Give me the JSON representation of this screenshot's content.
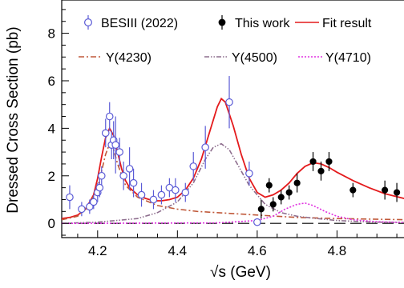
{
  "chart_data": {
    "type": "scatter",
    "title": "",
    "xlabel": "√s (GeV)",
    "ylabel": "Dressed Cross Section (pb)",
    "xlim": [
      4.11,
      4.98
    ],
    "ylim": [
      -0.6,
      9.4
    ],
    "xticks": [
      4.2,
      4.4,
      4.6,
      4.8
    ],
    "xtick_labels": [
      "4.2",
      "4.4",
      "4.6",
      "4.8"
    ],
    "yticks": [
      0,
      2,
      4,
      6,
      8
    ],
    "ytick_labels": [
      "0",
      "2",
      "4",
      "6",
      "8"
    ],
    "grid": false,
    "legend": [
      {
        "label": "BESIII (2022)",
        "style": "open-circle",
        "color": "#5b5bd6"
      },
      {
        "label": "This work",
        "style": "filled-circle",
        "color": "#000000"
      },
      {
        "label": "Fit result",
        "style": "line",
        "color": "#e41a1c"
      },
      {
        "label": "Y(4230)",
        "style": "dash-dot",
        "color": "#c0593a"
      },
      {
        "label": "Y(4500)",
        "style": "dash-dot-dot",
        "color": "#8e6e8e"
      },
      {
        "label": "Y(4710)",
        "style": "dotted",
        "color": "#e030e0"
      }
    ],
    "series": [
      {
        "name": "BESIII (2022)",
        "marker": "open-circle",
        "color": "#5b5bd6",
        "points": [
          {
            "x": 4.13,
            "y": 1.1,
            "err": 0.5
          },
          {
            "x": 4.16,
            "y": 0.6,
            "err": 0.3
          },
          {
            "x": 4.18,
            "y": 0.7,
            "err": 0.3
          },
          {
            "x": 4.19,
            "y": 0.9,
            "err": 0.3
          },
          {
            "x": 4.2,
            "y": 1.3,
            "err": 0.4
          },
          {
            "x": 4.205,
            "y": 1.5,
            "err": 0.4
          },
          {
            "x": 4.21,
            "y": 2.0,
            "err": 0.4
          },
          {
            "x": 4.22,
            "y": 3.8,
            "err": 0.6
          },
          {
            "x": 4.23,
            "y": 4.5,
            "err": 0.6
          },
          {
            "x": 4.235,
            "y": 3.3,
            "err": 0.6
          },
          {
            "x": 4.24,
            "y": 3.5,
            "err": 0.8
          },
          {
            "x": 4.245,
            "y": 3.3,
            "err": 1.2
          },
          {
            "x": 4.255,
            "y": 3.0,
            "err": 0.6
          },
          {
            "x": 4.265,
            "y": 2.0,
            "err": 0.6
          },
          {
            "x": 4.28,
            "y": 2.3,
            "err": 0.9
          },
          {
            "x": 4.29,
            "y": 1.7,
            "err": 0.6
          },
          {
            "x": 4.31,
            "y": 1.2,
            "err": 0.5
          },
          {
            "x": 4.34,
            "y": 1.0,
            "err": 0.4
          },
          {
            "x": 4.36,
            "y": 1.2,
            "err": 0.4
          },
          {
            "x": 4.38,
            "y": 1.5,
            "err": 0.4
          },
          {
            "x": 4.395,
            "y": 1.4,
            "err": 0.5
          },
          {
            "x": 4.42,
            "y": 1.3,
            "err": 0.4
          },
          {
            "x": 4.44,
            "y": 2.4,
            "err": 0.6
          },
          {
            "x": 4.47,
            "y": 3.2,
            "err": 0.9
          },
          {
            "x": 4.53,
            "y": 5.1,
            "err": 1.1
          },
          {
            "x": 4.58,
            "y": 2.1,
            "err": 0.5
          },
          {
            "x": 4.6,
            "y": 0.05,
            "err": 0.15
          }
        ]
      },
      {
        "name": "This work",
        "marker": "filled-circle",
        "color": "#000000",
        "points": [
          {
            "x": 4.61,
            "y": 0.6,
            "err": 0.4
          },
          {
            "x": 4.63,
            "y": 1.6,
            "err": 0.3
          },
          {
            "x": 4.64,
            "y": 0.8,
            "err": 0.3
          },
          {
            "x": 4.66,
            "y": 1.1,
            "err": 0.3
          },
          {
            "x": 4.68,
            "y": 1.3,
            "err": 0.3
          },
          {
            "x": 4.7,
            "y": 1.7,
            "err": 0.4
          },
          {
            "x": 4.74,
            "y": 2.6,
            "err": 0.4
          },
          {
            "x": 4.76,
            "y": 2.2,
            "err": 0.4
          },
          {
            "x": 4.78,
            "y": 2.6,
            "err": 0.4
          },
          {
            "x": 4.84,
            "y": 1.4,
            "err": 0.3
          },
          {
            "x": 4.92,
            "y": 1.4,
            "err": 0.4
          },
          {
            "x": 4.95,
            "y": 1.3,
            "err": 0.4
          }
        ]
      }
    ],
    "curves": [
      {
        "name": "Fit result",
        "color": "#e41a1c",
        "style": "solid",
        "x": [
          4.11,
          4.13,
          4.15,
          4.17,
          4.19,
          4.2,
          4.21,
          4.22,
          4.23,
          4.24,
          4.25,
          4.26,
          4.27,
          4.28,
          4.3,
          4.32,
          4.34,
          4.36,
          4.38,
          4.4,
          4.42,
          4.44,
          4.46,
          4.48,
          4.5,
          4.51,
          4.52,
          4.54,
          4.56,
          4.58,
          4.6,
          4.62,
          4.64,
          4.66,
          4.68,
          4.7,
          4.72,
          4.74,
          4.76,
          4.78,
          4.8,
          4.84,
          4.88,
          4.92,
          4.98
        ],
        "y": [
          0.2,
          0.25,
          0.35,
          0.6,
          1.2,
          1.9,
          2.8,
          3.6,
          4.0,
          3.7,
          3.0,
          2.3,
          1.8,
          1.5,
          1.2,
          1.05,
          0.95,
          0.95,
          1.0,
          1.1,
          1.4,
          1.9,
          2.7,
          3.8,
          4.9,
          5.25,
          5.1,
          4.1,
          2.9,
          1.9,
          1.3,
          1.1,
          1.2,
          1.4,
          1.7,
          2.1,
          2.4,
          2.55,
          2.5,
          2.35,
          2.15,
          1.8,
          1.5,
          1.25,
          1.0
        ]
      },
      {
        "name": "Y(4230)",
        "color": "#c0593a",
        "style": "dash-dot",
        "x": [
          4.11,
          4.15,
          4.18,
          4.2,
          4.22,
          4.23,
          4.24,
          4.25,
          4.27,
          4.3,
          4.35,
          4.4,
          4.45,
          4.5,
          4.55,
          4.6,
          4.7,
          4.8,
          4.98
        ],
        "y": [
          0.15,
          0.3,
          0.8,
          1.5,
          2.9,
          3.35,
          3.1,
          2.5,
          1.6,
          1.1,
          0.75,
          0.6,
          0.5,
          0.45,
          0.4,
          0.35,
          0.25,
          0.2,
          0.15
        ]
      },
      {
        "name": "Y(4500)",
        "color": "#8e6e8e",
        "style": "dash-dot-dot",
        "x": [
          4.11,
          4.2,
          4.3,
          4.35,
          4.4,
          4.44,
          4.47,
          4.49,
          4.51,
          4.53,
          4.55,
          4.58,
          4.62,
          4.66,
          4.7,
          4.75,
          4.8,
          4.85,
          4.9,
          4.98
        ],
        "y": [
          0.0,
          0.05,
          0.2,
          0.45,
          0.9,
          1.7,
          2.7,
          3.2,
          3.35,
          3.1,
          2.5,
          1.6,
          0.8,
          0.45,
          0.3,
          0.2,
          0.12,
          0.08,
          0.05,
          0.03
        ]
      },
      {
        "name": "Y(4710)",
        "color": "#e030e0",
        "style": "dotted",
        "x": [
          4.11,
          4.5,
          4.6,
          4.64,
          4.67,
          4.7,
          4.72,
          4.74,
          4.77,
          4.8,
          4.84,
          4.9,
          4.98
        ],
        "y": [
          0.0,
          0.02,
          0.12,
          0.3,
          0.6,
          0.8,
          0.85,
          0.75,
          0.5,
          0.3,
          0.15,
          0.07,
          0.03
        ]
      }
    ],
    "reference_lines": [
      {
        "orientation": "horizontal",
        "y": 0,
        "style": "dashed",
        "color": "#000000"
      }
    ]
  }
}
